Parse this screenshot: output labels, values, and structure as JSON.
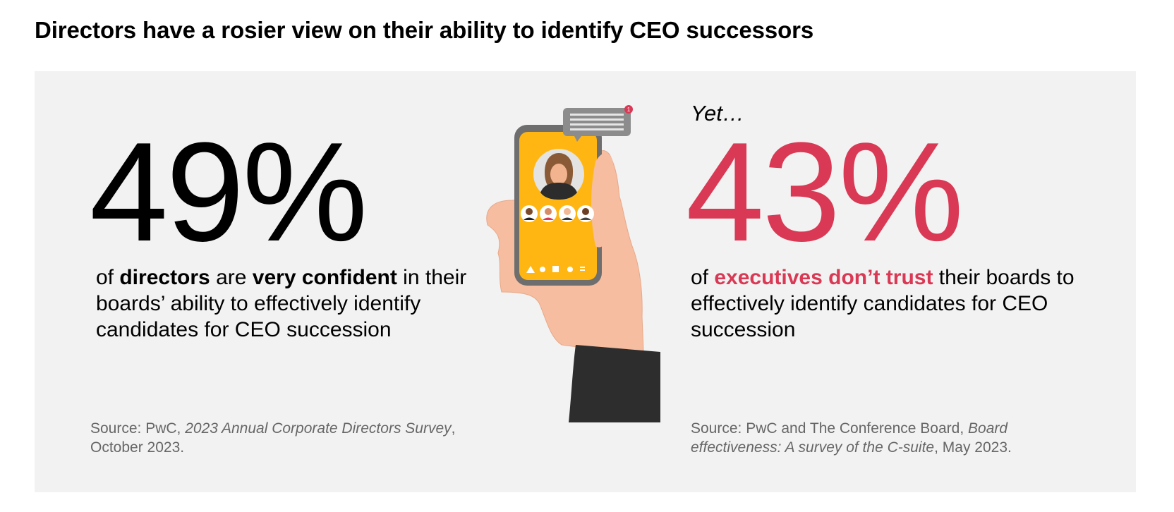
{
  "title": "Directors have a rosier view on their ability to identify CEO successors",
  "left": {
    "stat": "49%",
    "desc": {
      "p1": "of ",
      "b1": "directors",
      "p2": " are ",
      "b2": "very confident",
      "p3": " in their boards’ ability to effectively identify candidates for CEO succession"
    },
    "source": {
      "prefix": "Source: PwC, ",
      "title": "2023 Annual Corporate Directors Survey",
      "suffix": ", October 2023."
    }
  },
  "right": {
    "yet": "Yet…",
    "stat": "43%",
    "desc": {
      "p1": "of ",
      "highlight": "executives don’t trust",
      "p2": " their boards to effectively identify candidates for CEO succession"
    },
    "source": {
      "prefix": "Source: PwC and The Conference Board, ",
      "title": "Board effectiveness: A survey of the C-suite",
      "suffix": ", May 2023."
    }
  },
  "colors": {
    "accent": "#d93954",
    "phone_screen": "#ffb612",
    "panel_bg": "#f2f2f2",
    "skin": "#f7bda0",
    "sleeve": "#2d2d2d"
  },
  "illustration": {
    "notification_count": "1",
    "icons": [
      "user-avatar-icon",
      "triangle-icon",
      "link-icon",
      "edit-icon",
      "dot-icon",
      "menu-icon"
    ]
  }
}
